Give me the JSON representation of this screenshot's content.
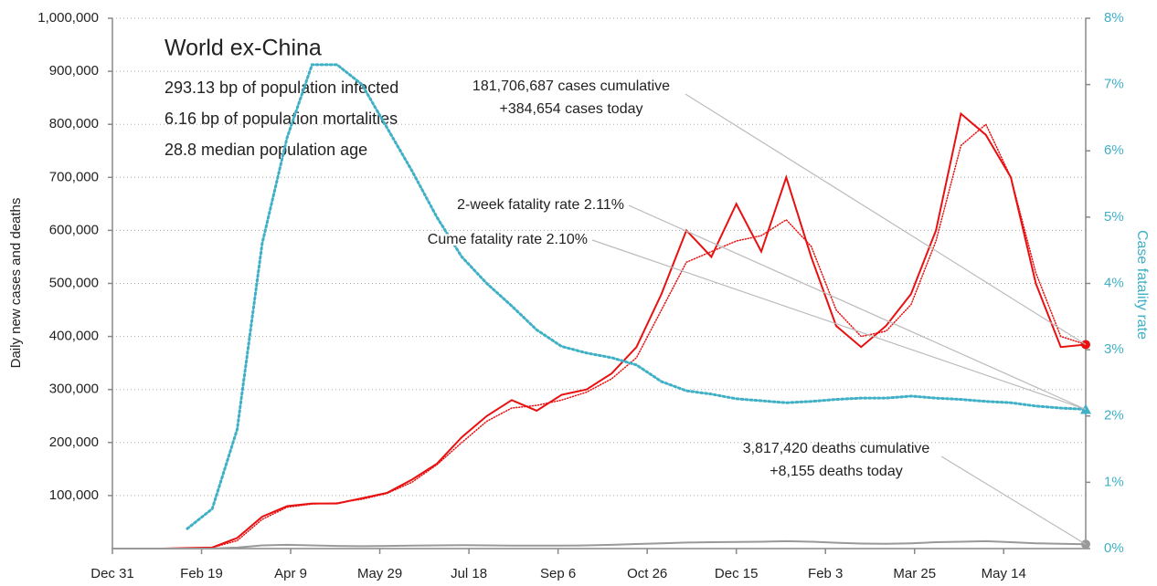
{
  "chart_data": {
    "type": "line",
    "title": "World ex-China",
    "subtitle_lines": [
      "293.13 bp of population infected",
      "6.16 bp of population mortalities",
      "28.8 median population age"
    ],
    "y_label": "Daily new cases and deaths",
    "y2_label": "Case fatality rate",
    "annotations": [
      {
        "lines": [
          "181,706,687 cases cumulative",
          "+384,654 cases today"
        ]
      },
      {
        "lines": [
          "2-week fatality rate 2.11%"
        ]
      },
      {
        "lines": [
          "Cume fatality rate 2.10%"
        ]
      },
      {
        "lines": [
          "3,817,420 deaths cumulative",
          "+8,155 deaths today"
        ]
      }
    ],
    "x": [
      0,
      14,
      28,
      42,
      56,
      70,
      84,
      98,
      112,
      126,
      140,
      154,
      168,
      182,
      196,
      210,
      224,
      238,
      252,
      266,
      280,
      294,
      308,
      322,
      336,
      350,
      364,
      378,
      392,
      406,
      420,
      434,
      448,
      462,
      476,
      490,
      504,
      518,
      532,
      546
    ],
    "xlim": [
      0,
      546
    ],
    "xticks": [
      {
        "value": 0,
        "label": "Dec 31"
      },
      {
        "value": 50,
        "label": "Feb 19"
      },
      {
        "value": 100,
        "label": "Apr 9"
      },
      {
        "value": 150,
        "label": "May 29"
      },
      {
        "value": 200,
        "label": "Jul 18"
      },
      {
        "value": 250,
        "label": "Sep 6"
      },
      {
        "value": 300,
        "label": "Oct 26"
      },
      {
        "value": 350,
        "label": "Dec 15"
      },
      {
        "value": 400,
        "label": "Feb 3"
      },
      {
        "value": 450,
        "label": "Mar 25"
      },
      {
        "value": 500,
        "label": "May 14"
      }
    ],
    "ylim": [
      0,
      1000000
    ],
    "yticks": [
      {
        "value": 100000,
        "label": "100,000"
      },
      {
        "value": 200000,
        "label": "200,000"
      },
      {
        "value": 300000,
        "label": "300,000"
      },
      {
        "value": 400000,
        "label": "400,000"
      },
      {
        "value": 500000,
        "label": "500,000"
      },
      {
        "value": 600000,
        "label": "600,000"
      },
      {
        "value": 700000,
        "label": "700,000"
      },
      {
        "value": 800000,
        "label": "800,000"
      },
      {
        "value": 900000,
        "label": "900,000"
      },
      {
        "value": 1000000,
        "label": "1,000,000"
      }
    ],
    "y2lim": [
      0,
      8
    ],
    "y2ticks": [
      {
        "value": 0,
        "label": "0%"
      },
      {
        "value": 1,
        "label": "1%"
      },
      {
        "value": 2,
        "label": "2%"
      },
      {
        "value": 3,
        "label": "3%"
      },
      {
        "value": 4,
        "label": "4%"
      },
      {
        "value": 5,
        "label": "5%"
      },
      {
        "value": 6,
        "label": "6%"
      },
      {
        "value": 7,
        "label": "7%"
      },
      {
        "value": 8,
        "label": "8%"
      }
    ],
    "grid": true,
    "series": [
      {
        "color": "#e81010",
        "line_style": "solid",
        "marker": "circle",
        "values": [
          0,
          0,
          0,
          1000,
          2000,
          20000,
          60000,
          80000,
          85000,
          85000,
          95000,
          105000,
          130000,
          160000,
          210000,
          250000,
          280000,
          260000,
          290000,
          300000,
          330000,
          380000,
          480000,
          600000,
          550000,
          650000,
          560000,
          700000,
          550000,
          420000,
          380000,
          420000,
          480000,
          600000,
          820000,
          780000,
          700000,
          500000,
          380000,
          384654
        ]
      },
      {
        "color": "#e81010",
        "line_style": "dotted",
        "values": [
          0,
          0,
          0,
          800,
          1800,
          15000,
          55000,
          78000,
          84000,
          86000,
          93000,
          104000,
          125000,
          158000,
          200000,
          240000,
          265000,
          270000,
          280000,
          295000,
          320000,
          360000,
          450000,
          540000,
          560000,
          580000,
          590000,
          620000,
          570000,
          450000,
          400000,
          410000,
          460000,
          580000,
          760000,
          800000,
          700000,
          520000,
          400000,
          385000
        ]
      },
      {
        "color": "#999999",
        "line_style": "solid",
        "marker": "circle",
        "values": [
          0,
          0,
          0,
          0,
          100,
          2000,
          6000,
          7000,
          6000,
          5000,
          4500,
          5000,
          5500,
          6000,
          6500,
          6000,
          5500,
          5500,
          5500,
          6000,
          7000,
          8500,
          10000,
          11500,
          12000,
          12500,
          13000,
          14000,
          13000,
          11000,
          9500,
          9000,
          10000,
          12000,
          13000,
          14000,
          12000,
          10000,
          9000,
          8155
        ]
      },
      {
        "color": "#3fb0c6",
        "line_style": "dotted",
        "marker": "triangle",
        "axis": "y2",
        "values": [
          null,
          null,
          null,
          0.3,
          0.6,
          1.8,
          4.6,
          6.2,
          7.3,
          7.3,
          7.0,
          6.35,
          5.7,
          5.0,
          4.4,
          4.0,
          3.66,
          3.3,
          3.05,
          2.95,
          2.88,
          2.77,
          2.52,
          2.38,
          2.33,
          2.26,
          2.23,
          2.2,
          2.22,
          2.25,
          2.27,
          2.27,
          2.3,
          2.27,
          2.25,
          2.22,
          2.2,
          2.15,
          2.12,
          2.1
        ]
      }
    ]
  }
}
